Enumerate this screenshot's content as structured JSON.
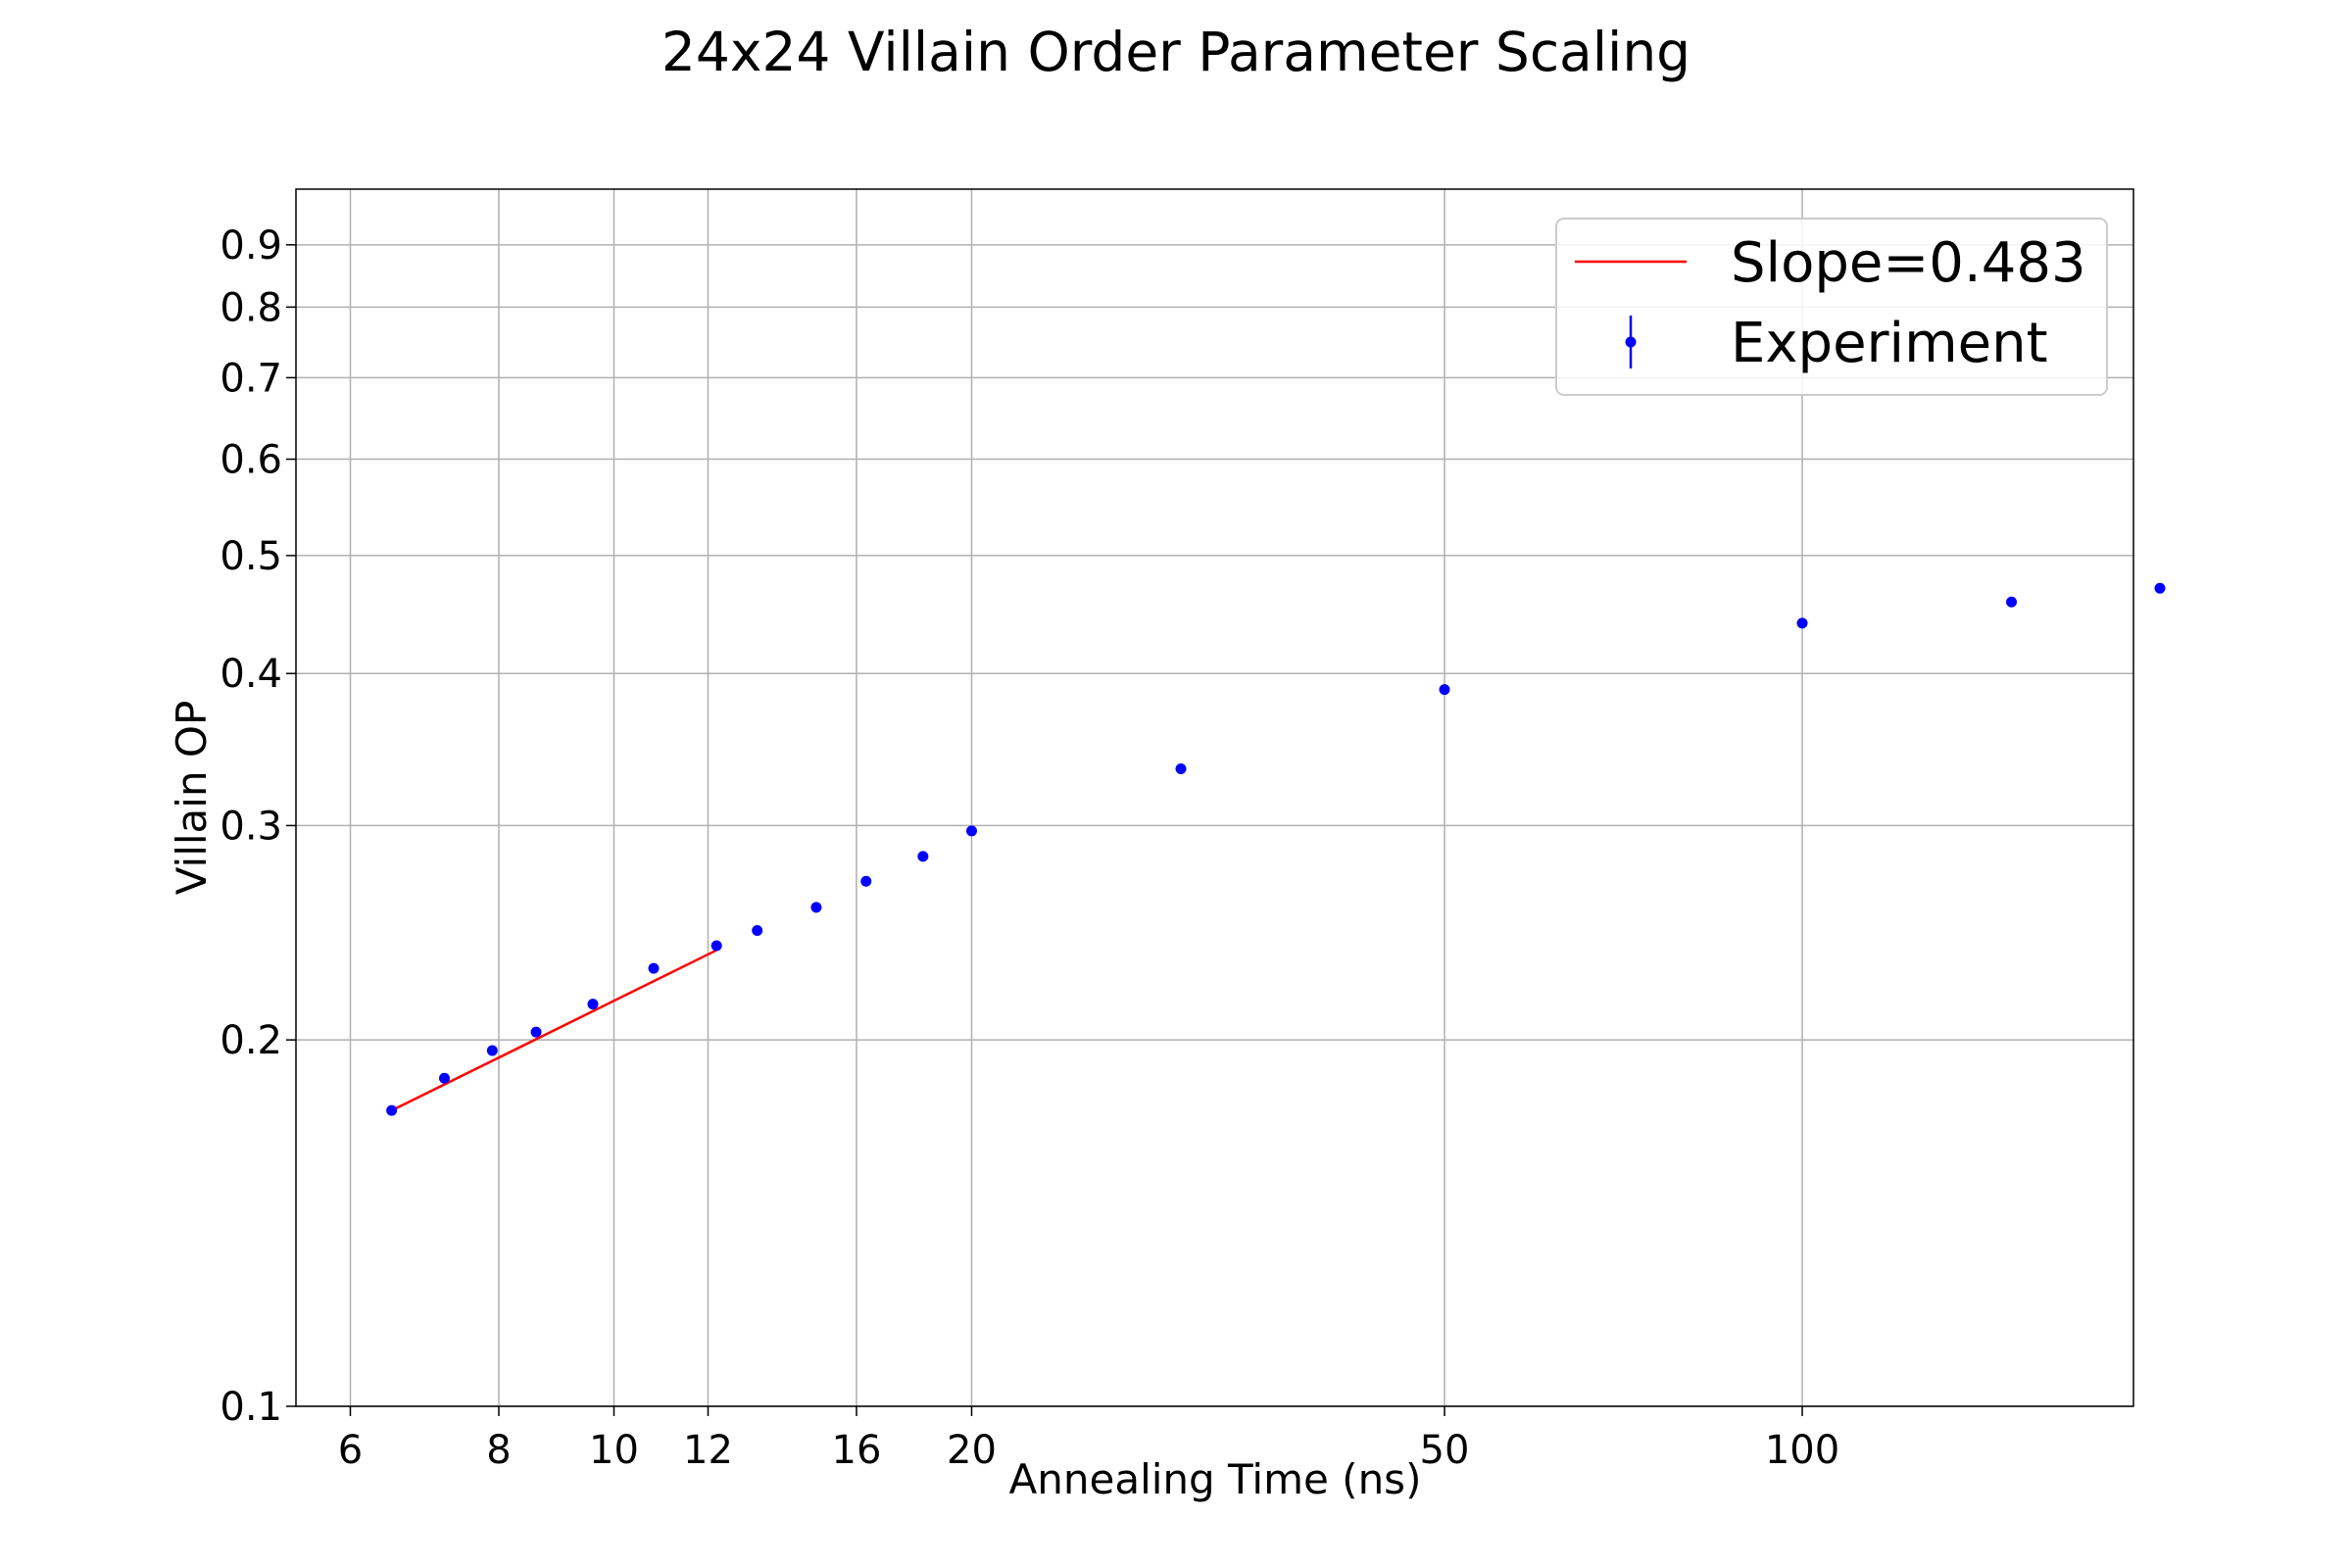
{
  "chart_data": {
    "type": "scatter",
    "title": "24x24 Villain Order Parameter Scaling",
    "xlabel": "Annealing Time (ns)",
    "ylabel": "Villain OP",
    "x_scale": "log",
    "y_scale": "log",
    "xlim": [
      5.4,
      190
    ],
    "ylim": [
      0.1,
      1.0
    ],
    "x_ticks": [
      6,
      8,
      10,
      12,
      16,
      20,
      50,
      100
    ],
    "y_ticks": [
      0.1,
      0.2,
      0.3,
      0.4,
      0.5,
      0.6,
      0.7,
      0.8,
      0.9
    ],
    "grid": true,
    "legend_position": "top-right",
    "series": [
      {
        "name": "Slope=0.483",
        "kind": "line",
        "color": "#ff0000",
        "x": [
          6.5,
          12.2
        ],
        "y": [
          0.175,
          0.237
        ]
      },
      {
        "name": "Experiment",
        "kind": "errorbar",
        "color": "#0000ff",
        "x": [
          6.5,
          7.2,
          7.9,
          8.6,
          9.6,
          10.8,
          12.2,
          13.2,
          14.8,
          16.3,
          18.2,
          20,
          30,
          50,
          100,
          150,
          200
        ],
        "y": [
          0.175,
          0.186,
          0.196,
          0.203,
          0.214,
          0.229,
          0.239,
          0.246,
          0.257,
          0.27,
          0.283,
          0.297,
          0.334,
          0.388,
          0.44,
          0.458,
          0.47
        ]
      }
    ]
  }
}
